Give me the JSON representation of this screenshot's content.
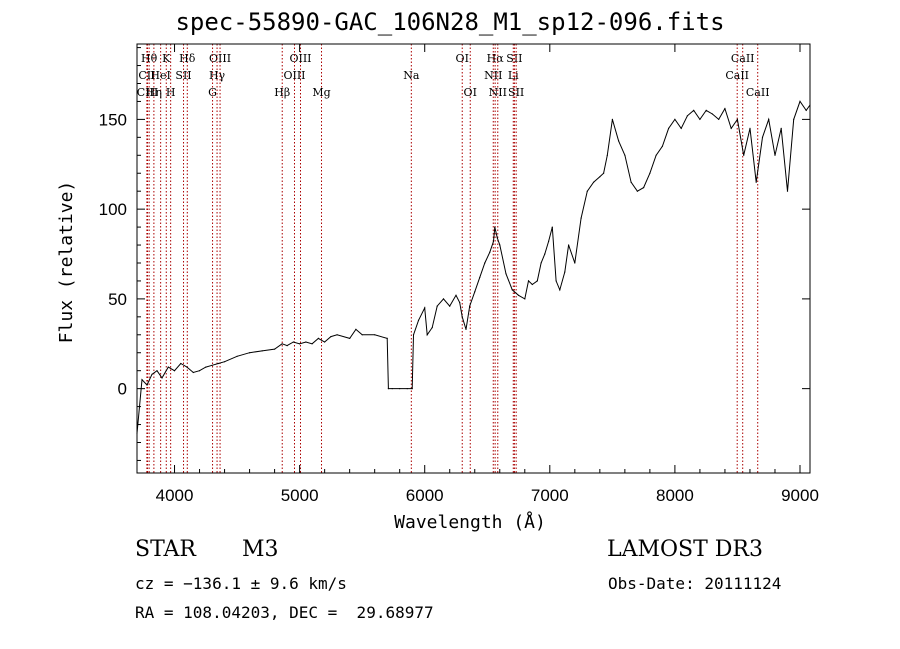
{
  "chart_data": {
    "type": "line",
    "title": "spec-55890-GAC_106N28_M1_sp12-096.fits",
    "xlabel": "Wavelength (Å)",
    "ylabel": "Flux (relative)",
    "xlim": [
      3700,
      9080
    ],
    "ylim": [
      -47,
      192
    ],
    "xticks": [
      4000,
      5000,
      6000,
      7000,
      8000,
      9000
    ],
    "yticks": [
      0,
      50,
      100,
      150
    ],
    "line_color": "#000000",
    "marker_color": "#aa0000",
    "series": [
      {
        "name": "flux",
        "x": [
          3700,
          3740,
          3780,
          3820,
          3860,
          3900,
          3950,
          4000,
          4050,
          4100,
          4150,
          4200,
          4250,
          4300,
          4350,
          4400,
          4500,
          4600,
          4700,
          4800,
          4860,
          4900,
          4950,
          5000,
          5050,
          5100,
          5150,
          5200,
          5250,
          5300,
          5400,
          5450,
          5500,
          5600,
          5700,
          5710,
          5740,
          5800,
          5860,
          5900,
          5910,
          5950,
          6000,
          6020,
          6060,
          6100,
          6150,
          6200,
          6250,
          6280,
          6300,
          6330,
          6360,
          6400,
          6440,
          6480,
          6520,
          6550,
          6560,
          6580,
          6600,
          6650,
          6700,
          6750,
          6800,
          6830,
          6860,
          6900,
          6930,
          6960,
          6990,
          7020,
          7050,
          7080,
          7120,
          7150,
          7200,
          7250,
          7300,
          7350,
          7400,
          7430,
          7460,
          7500,
          7550,
          7600,
          7650,
          7700,
          7750,
          7800,
          7850,
          7900,
          7950,
          8000,
          8050,
          8100,
          8150,
          8200,
          8250,
          8300,
          8350,
          8400,
          8450,
          8500,
          8550,
          8600,
          8650,
          8700,
          8750,
          8800,
          8850,
          8900,
          8950,
          9000,
          9050,
          9080
        ],
        "values": [
          -25,
          5,
          2,
          8,
          10,
          6,
          12,
          10,
          14,
          12,
          9,
          10,
          12,
          13,
          14,
          15,
          18,
          20,
          21,
          22,
          25,
          24,
          26,
          25,
          26,
          25,
          28,
          26,
          29,
          30,
          28,
          33,
          30,
          30,
          28,
          0,
          0,
          0,
          0,
          0,
          30,
          38,
          45,
          30,
          34,
          46,
          50,
          46,
          52,
          48,
          40,
          33,
          46,
          54,
          62,
          70,
          76,
          82,
          90,
          84,
          80,
          64,
          55,
          52,
          50,
          60,
          58,
          60,
          70,
          75,
          82,
          90,
          60,
          55,
          65,
          80,
          70,
          95,
          110,
          115,
          118,
          120,
          130,
          150,
          138,
          130,
          115,
          110,
          112,
          120,
          130,
          135,
          145,
          150,
          145,
          152,
          155,
          150,
          155,
          153,
          150,
          156,
          145,
          150,
          130,
          145,
          115,
          140,
          150,
          130,
          145,
          110,
          150,
          160,
          155,
          158
        ]
      }
    ],
    "lines": [
      {
        "label": "Hθ",
        "wl": 3797,
        "row": 1
      },
      {
        "label": "CII",
        "wl": 3779,
        "row": 2
      },
      {
        "label": "CIII",
        "wl": 3784,
        "row": 3
      },
      {
        "label": "K",
        "wl": 3934,
        "row": 1
      },
      {
        "label": "HeI",
        "wl": 3889,
        "row": 2
      },
      {
        "label": "Hη",
        "wl": 3835,
        "row": 3
      },
      {
        "label": "H",
        "wl": 3969,
        "row": 3
      },
      {
        "label": "Hδ",
        "wl": 4102,
        "row": 1
      },
      {
        "label": "SII",
        "wl": 4072,
        "row": 2
      },
      {
        "label": "OIII",
        "wl": 4364,
        "row": 1
      },
      {
        "label": "Hγ",
        "wl": 4340,
        "row": 2
      },
      {
        "label": "G",
        "wl": 4304,
        "row": 3
      },
      {
        "label": "OIII",
        "wl": 5007,
        "row": 1
      },
      {
        "label": "OIII",
        "wl": 4959,
        "row": 2
      },
      {
        "label": "Hβ",
        "wl": 4861,
        "row": 3
      },
      {
        "label": "Mg",
        "wl": 5175,
        "row": 3
      },
      {
        "label": "Na",
        "wl": 5893,
        "row": 2
      },
      {
        "label": "OI",
        "wl": 6300,
        "row": 1
      },
      {
        "label": "OI",
        "wl": 6364,
        "row": 3
      },
      {
        "label": "Hα",
        "wl": 6563,
        "row": 1
      },
      {
        "label": "SII",
        "wl": 6717,
        "row": 1
      },
      {
        "label": "NII",
        "wl": 6548,
        "row": 2
      },
      {
        "label": "Li",
        "wl": 6708,
        "row": 2
      },
      {
        "label": "NII",
        "wl": 6584,
        "row": 3
      },
      {
        "label": "SII",
        "wl": 6731,
        "row": 3
      },
      {
        "label": "CaII",
        "wl": 8542,
        "row": 1
      },
      {
        "label": "CaII",
        "wl": 8498,
        "row": 2
      },
      {
        "label": "CaII",
        "wl": 8662,
        "row": 3
      }
    ]
  },
  "info": {
    "object_class": "STAR",
    "subclass": "M3",
    "survey": "LAMOST DR3",
    "redshift": "cz = −136.1 ± 9.6 km/s",
    "obs_date": "Obs-Date: 20111124",
    "coords": "RA = 108.04203, DEC =  29.68977"
  }
}
